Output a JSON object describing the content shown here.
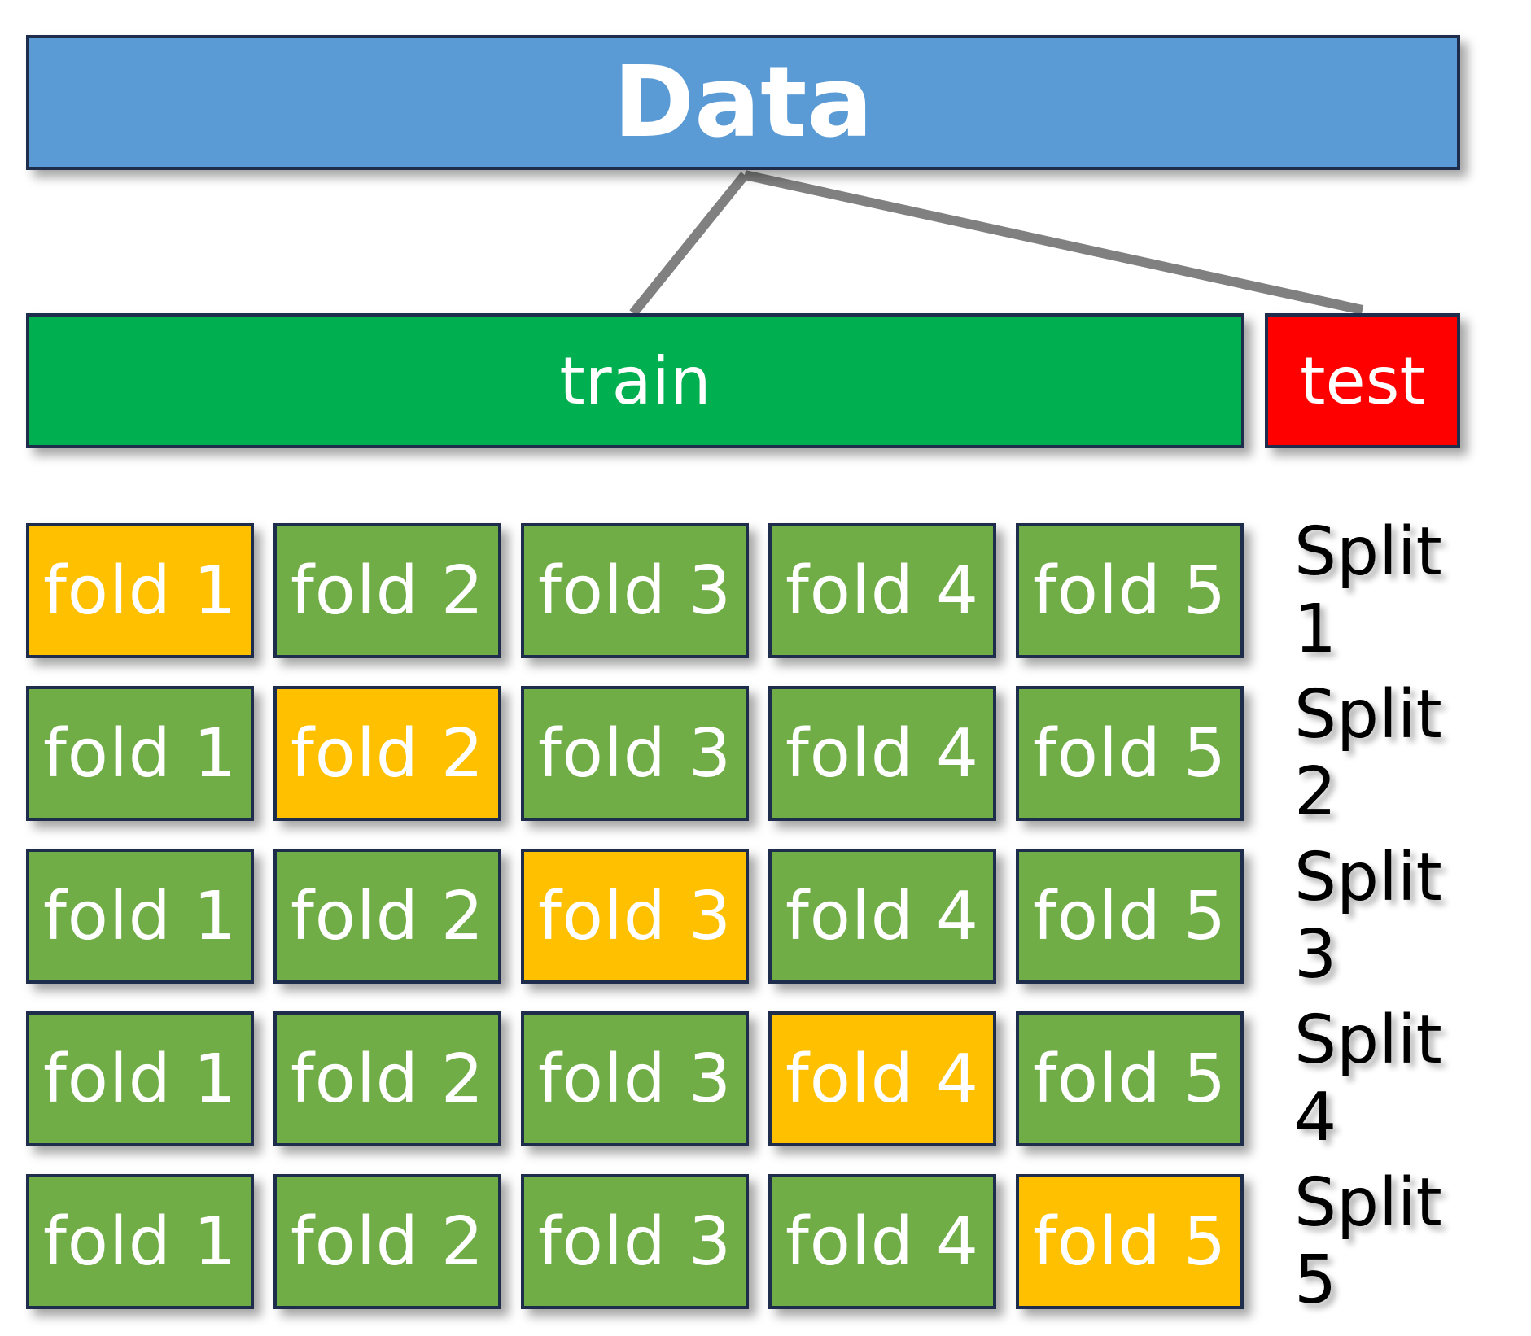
{
  "data_label": "Data",
  "train_label": "train",
  "test_label": "test",
  "splits": [
    {
      "label": "Split 1",
      "folds": [
        "fold 1",
        "fold 2",
        "fold 3",
        "fold 4",
        "fold 5"
      ],
      "validation_fold": 1
    },
    {
      "label": "Split 2",
      "folds": [
        "fold 1",
        "fold 2",
        "fold 3",
        "fold 4",
        "fold 5"
      ],
      "validation_fold": 2
    },
    {
      "label": "Split 3",
      "folds": [
        "fold 1",
        "fold 2",
        "fold 3",
        "fold 4",
        "fold 5"
      ],
      "validation_fold": 3
    },
    {
      "label": "Split 4",
      "folds": [
        "fold 1",
        "fold 2",
        "fold 3",
        "fold 4",
        "fold 5"
      ],
      "validation_fold": 4
    },
    {
      "label": "Split 5",
      "folds": [
        "fold 1",
        "fold 2",
        "fold 3",
        "fold 4",
        "fold 5"
      ],
      "validation_fold": 5
    }
  ],
  "colors": {
    "data": "#5b9bd5",
    "train": "#00b050",
    "test": "#ff0000",
    "fold": "#70ad47",
    "validation_fold": "#ffc000",
    "connector": "#808080",
    "border": "#1f2d4d"
  }
}
